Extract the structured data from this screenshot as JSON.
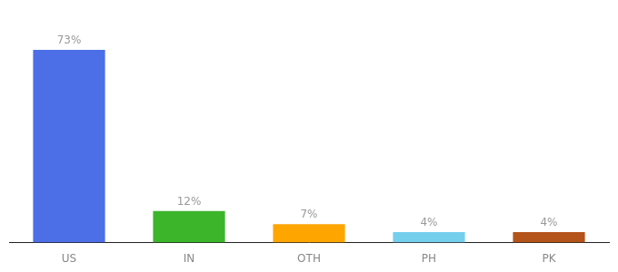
{
  "chart_data": {
    "type": "bar",
    "categories": [
      "US",
      "IN",
      "OTH",
      "PH",
      "PK"
    ],
    "values": [
      73,
      12,
      7,
      4,
      4
    ],
    "value_labels": [
      "73%",
      "12%",
      "7%",
      "4%",
      "4%"
    ],
    "colors": [
      "#4C6EE6",
      "#3CB52A",
      "#FFA500",
      "#74CFED",
      "#B5541A"
    ],
    "data_labels": true,
    "ylim": [
      0,
      85
    ],
    "tick_labels": "x",
    "grid": false
  }
}
